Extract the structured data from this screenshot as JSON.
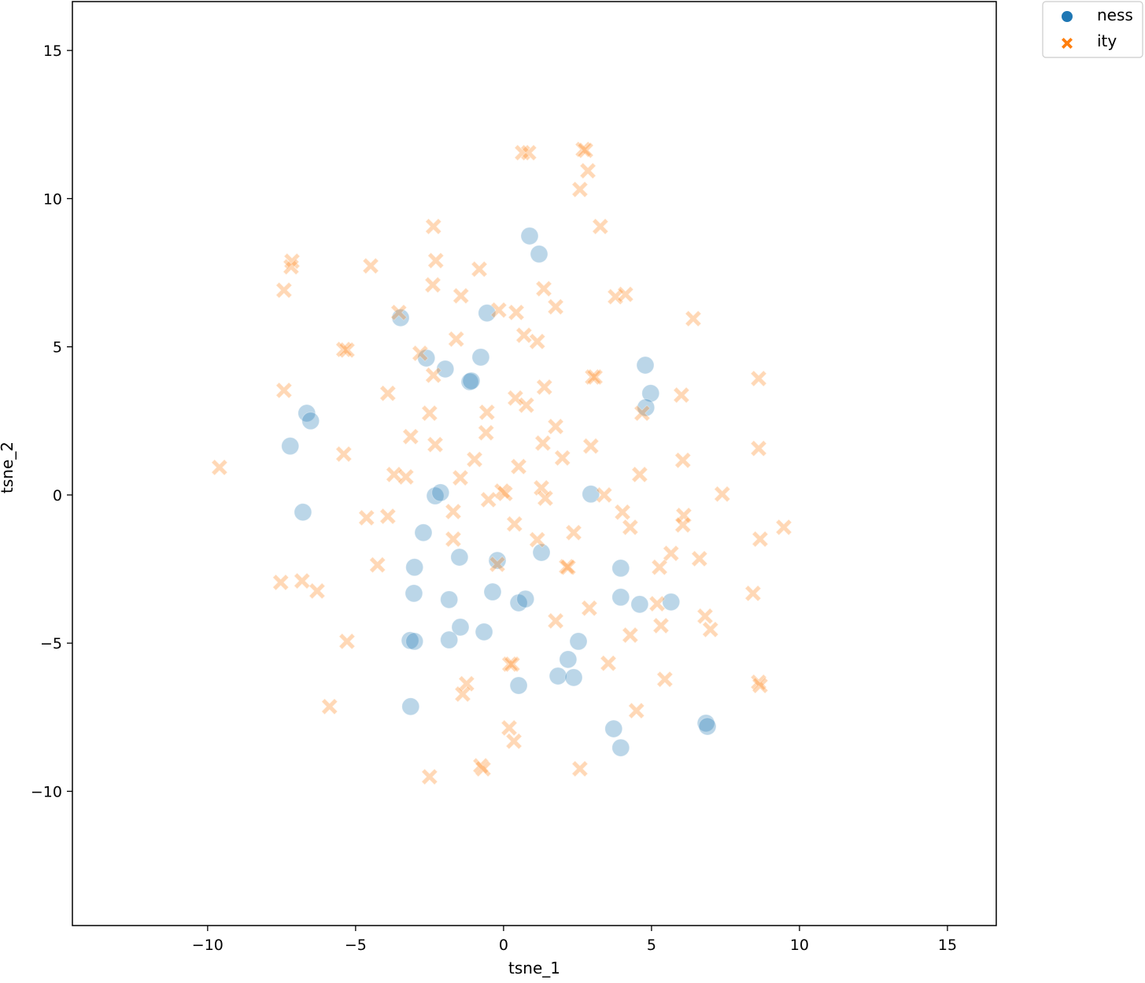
{
  "chart_data": {
    "type": "scatter",
    "title": "",
    "xlabel": "tsne_1",
    "ylabel": "tsne_2",
    "xlim": [
      -14.57,
      16.65
    ],
    "ylim": [
      -14.53,
      16.65
    ],
    "xticks": [
      -10,
      -5,
      0,
      5,
      10,
      15
    ],
    "yticks": [
      -10,
      -5,
      0,
      5,
      10,
      15
    ],
    "xtick_labels": [
      "−10",
      "−5",
      "0",
      "5",
      "10",
      "15"
    ],
    "ytick_labels": [
      "−10",
      "−5",
      "0",
      "5",
      "10",
      "15"
    ],
    "grid": false,
    "legend_placement": "outside-top-right",
    "marker_alpha": 0.3,
    "series": [
      {
        "name": "ness",
        "marker": "circle",
        "color": "#1f77b4",
        "points": [
          [
            0.88,
            8.74
          ],
          [
            1.2,
            8.13
          ],
          [
            -3.48,
            5.98
          ],
          [
            -0.56,
            6.14
          ],
          [
            -2.61,
            4.62
          ],
          [
            -1.97,
            4.25
          ],
          [
            -0.77,
            4.65
          ],
          [
            -1.14,
            3.82
          ],
          [
            -1.09,
            3.85
          ],
          [
            4.79,
            4.38
          ],
          [
            4.97,
            3.43
          ],
          [
            4.81,
            2.95
          ],
          [
            -6.65,
            2.76
          ],
          [
            -6.52,
            2.5
          ],
          [
            -7.21,
            1.65
          ],
          [
            -6.78,
            -0.58
          ],
          [
            -2.31,
            -0.03
          ],
          [
            -2.13,
            0.08
          ],
          [
            2.95,
            0.03
          ],
          [
            -2.71,
            -1.27
          ],
          [
            -1.49,
            -2.1
          ],
          [
            -0.21,
            -2.21
          ],
          [
            1.28,
            -1.94
          ],
          [
            -3.01,
            -2.44
          ],
          [
            3.96,
            -2.47
          ],
          [
            -3.03,
            -3.32
          ],
          [
            -0.37,
            -3.27
          ],
          [
            -1.84,
            -3.53
          ],
          [
            0.51,
            -3.64
          ],
          [
            0.74,
            -3.51
          ],
          [
            3.96,
            -3.45
          ],
          [
            4.6,
            -3.69
          ],
          [
            5.66,
            -3.61
          ],
          [
            -1.46,
            -4.46
          ],
          [
            -0.66,
            -4.62
          ],
          [
            -3.16,
            -4.91
          ],
          [
            -3.01,
            -4.94
          ],
          [
            -1.84,
            -4.89
          ],
          [
            2.53,
            -4.94
          ],
          [
            2.18,
            -5.55
          ],
          [
            1.84,
            -6.11
          ],
          [
            2.37,
            -6.16
          ],
          [
            0.51,
            -6.43
          ],
          [
            -3.14,
            -7.14
          ],
          [
            3.72,
            -7.89
          ],
          [
            3.96,
            -8.53
          ],
          [
            6.84,
            -7.7
          ],
          [
            6.89,
            -7.81
          ]
        ]
      },
      {
        "name": "ity",
        "marker": "x",
        "color": "#ff7f0e",
        "points": [
          [
            -2.37,
            9.06
          ],
          [
            2.69,
            11.66
          ],
          [
            2.77,
            11.63
          ],
          [
            0.64,
            11.55
          ],
          [
            0.85,
            11.55
          ],
          [
            2.85,
            10.94
          ],
          [
            2.58,
            10.31
          ],
          [
            3.27,
            9.06
          ],
          [
            -7.15,
            7.89
          ],
          [
            -7.18,
            7.7
          ],
          [
            -4.49,
            7.73
          ],
          [
            -2.29,
            7.91
          ],
          [
            -7.42,
            6.91
          ],
          [
            -2.39,
            7.09
          ],
          [
            -0.82,
            7.62
          ],
          [
            -1.44,
            6.72
          ],
          [
            1.36,
            6.96
          ],
          [
            1.76,
            6.35
          ],
          [
            3.78,
            6.69
          ],
          [
            4.12,
            6.77
          ],
          [
            6.41,
            5.95
          ],
          [
            -3.54,
            6.16
          ],
          [
            0.43,
            6.16
          ],
          [
            -0.16,
            6.24
          ],
          [
            -5.4,
            4.91
          ],
          [
            -5.29,
            4.89
          ],
          [
            -2.82,
            4.78
          ],
          [
            -1.6,
            5.26
          ],
          [
            0.69,
            5.39
          ],
          [
            1.14,
            5.18
          ],
          [
            -2.37,
            4.04
          ],
          [
            3.01,
            3.98
          ],
          [
            3.09,
            3.98
          ],
          [
            8.62,
            3.93
          ],
          [
            -7.42,
            3.53
          ],
          [
            -3.91,
            3.43
          ],
          [
            1.38,
            3.64
          ],
          [
            0.4,
            3.27
          ],
          [
            0.77,
            3.03
          ],
          [
            6.01,
            3.37
          ],
          [
            4.68,
            2.76
          ],
          [
            -2.5,
            2.76
          ],
          [
            -0.56,
            2.79
          ],
          [
            -3.14,
            1.97
          ],
          [
            -0.59,
            2.1
          ],
          [
            1.76,
            2.31
          ],
          [
            -2.31,
            1.7
          ],
          [
            2.95,
            1.65
          ],
          [
            1.33,
            1.75
          ],
          [
            8.62,
            1.57
          ],
          [
            -5.4,
            1.38
          ],
          [
            -0.98,
            1.2
          ],
          [
            1.99,
            1.25
          ],
          [
            6.06,
            1.17
          ],
          [
            -9.6,
            0.93
          ],
          [
            0.51,
            0.96
          ],
          [
            -3.7,
            0.69
          ],
          [
            -3.3,
            0.61
          ],
          [
            -1.46,
            0.58
          ],
          [
            4.6,
            0.69
          ],
          [
            1.28,
            0.24
          ],
          [
            1.41,
            -0.11
          ],
          [
            -0.05,
            0.13
          ],
          [
            0.05,
            0.05
          ],
          [
            -0.51,
            -0.16
          ],
          [
            3.4,
            0.0
          ],
          [
            7.39,
            0.03
          ],
          [
            -1.7,
            -0.56
          ],
          [
            4.02,
            -0.58
          ],
          [
            -4.63,
            -0.77
          ],
          [
            -3.91,
            -0.72
          ],
          [
            6.09,
            -0.69
          ],
          [
            6.06,
            -1.01
          ],
          [
            0.37,
            -0.98
          ],
          [
            4.28,
            -1.09
          ],
          [
            9.47,
            -1.09
          ],
          [
            2.37,
            -1.27
          ],
          [
            -1.7,
            -1.49
          ],
          [
            1.14,
            -1.51
          ],
          [
            8.67,
            -1.49
          ],
          [
            5.66,
            -1.97
          ],
          [
            6.62,
            -2.15
          ],
          [
            -4.26,
            -2.36
          ],
          [
            -0.21,
            -2.34
          ],
          [
            2.13,
            -2.42
          ],
          [
            2.18,
            -2.44
          ],
          [
            5.27,
            -2.44
          ],
          [
            -7.53,
            -2.95
          ],
          [
            -6.81,
            -2.9
          ],
          [
            -6.3,
            -3.24
          ],
          [
            8.43,
            -3.32
          ],
          [
            5.19,
            -3.67
          ],
          [
            2.9,
            -3.82
          ],
          [
            6.81,
            -4.09
          ],
          [
            6.99,
            -4.54
          ],
          [
            1.76,
            -4.25
          ],
          [
            5.32,
            -4.41
          ],
          [
            4.28,
            -4.73
          ],
          [
            -5.29,
            -4.94
          ],
          [
            0.21,
            -5.71
          ],
          [
            0.29,
            -5.71
          ],
          [
            3.54,
            -5.68
          ],
          [
            -1.25,
            -6.37
          ],
          [
            -1.38,
            -6.72
          ],
          [
            5.45,
            -6.22
          ],
          [
            8.62,
            -6.32
          ],
          [
            8.67,
            -6.43
          ],
          [
            -5.88,
            -7.14
          ],
          [
            4.49,
            -7.28
          ],
          [
            0.19,
            -7.86
          ],
          [
            0.35,
            -8.31
          ],
          [
            -0.77,
            -9.14
          ],
          [
            -0.69,
            -9.24
          ],
          [
            2.58,
            -9.24
          ],
          [
            -2.5,
            -9.51
          ]
        ]
      }
    ]
  }
}
